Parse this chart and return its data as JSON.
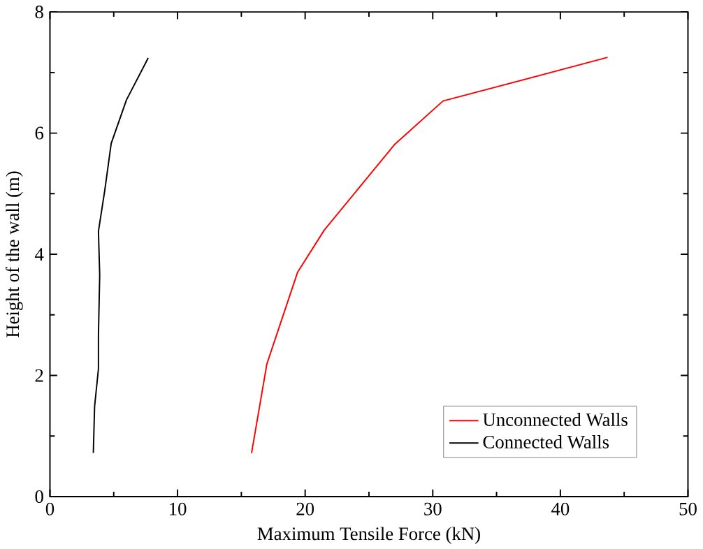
{
  "chart_data": {
    "type": "line",
    "xlabel": "Maximum Tensile Force (kN)",
    "ylabel": "Height of the wall (m)",
    "xlim": [
      0,
      50
    ],
    "ylim": [
      0,
      8
    ],
    "xticks": [
      0,
      10,
      20,
      30,
      40,
      50
    ],
    "yticks": [
      0,
      2,
      4,
      6,
      8
    ],
    "legend": "bottom right",
    "grid": false,
    "series": [
      {
        "name": "Unconnected Walls",
        "color": "#ff0000",
        "x": [
          15.8,
          17.0,
          19.4,
          21.5,
          27.0,
          30.8,
          43.7
        ],
        "values": [
          0.72,
          2.19,
          3.7,
          4.4,
          5.81,
          6.53,
          7.25
        ]
      },
      {
        "name": "Connected Walls",
        "color": "#000000",
        "x": [
          3.4,
          3.5,
          3.8,
          3.8,
          3.9,
          3.8,
          4.3,
          4.8,
          6.0,
          7.7
        ],
        "values": [
          0.72,
          1.49,
          2.11,
          2.66,
          3.66,
          4.38,
          5.06,
          5.83,
          6.55,
          7.24
        ]
      }
    ]
  }
}
